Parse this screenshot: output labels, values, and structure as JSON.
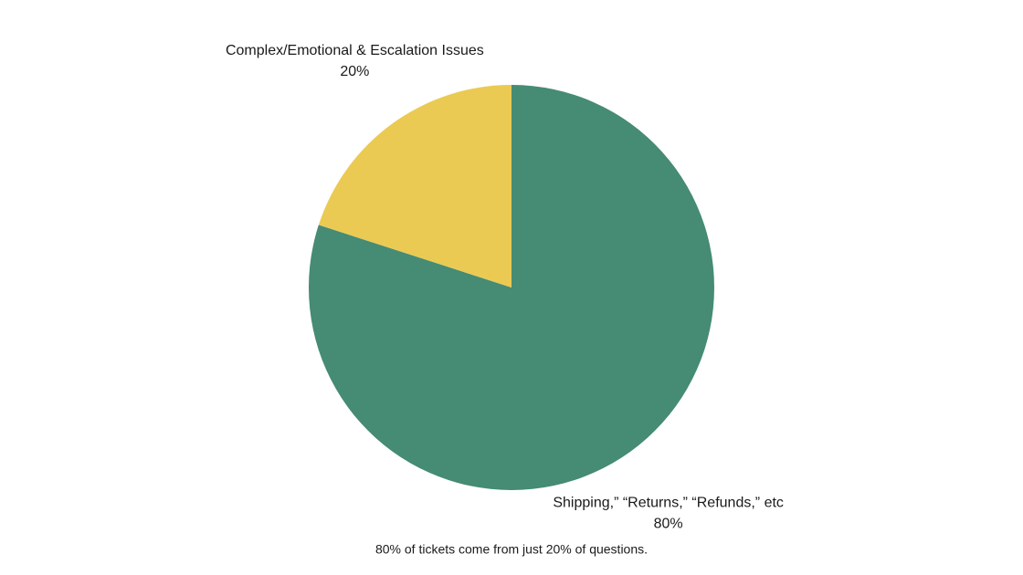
{
  "chart_data": {
    "type": "pie",
    "categories": [
      "Shipping,” “Returns,” “Refunds,” etc",
      "Complex/Emotional & Escalation Issues"
    ],
    "values": [
      80,
      20
    ],
    "value_labels": [
      "80%",
      "20%"
    ],
    "colors": [
      "#468b74",
      "#ebca53"
    ],
    "caption": "80% of tickets come from just 20% of questions."
  }
}
